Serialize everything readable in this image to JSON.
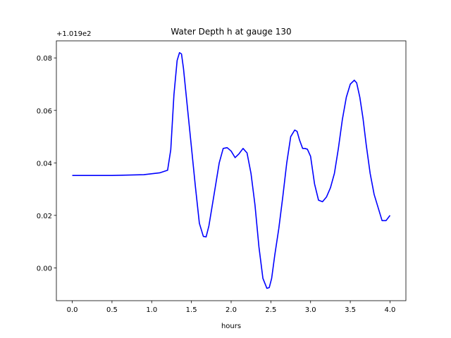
{
  "chart_data": {
    "type": "line",
    "title": "Water Depth h at gauge 130",
    "xlabel": "hours",
    "ylabel": "",
    "y_offset_label": "+1.019e2",
    "xlim": [
      -0.2,
      4.2
    ],
    "ylim": [
      -0.0125,
      0.0865
    ],
    "x_ticks": [
      0.0,
      0.5,
      1.0,
      1.5,
      2.0,
      2.5,
      3.0,
      3.5,
      4.0
    ],
    "x_tick_labels": [
      "0.0",
      "0.5",
      "1.0",
      "1.5",
      "2.0",
      "2.5",
      "3.0",
      "3.5",
      "4.0"
    ],
    "y_ticks": [
      0.0,
      0.02,
      0.04,
      0.06,
      0.08
    ],
    "y_tick_labels": [
      "0.00",
      "0.02",
      "0.04",
      "0.06",
      "0.08"
    ],
    "grid": false,
    "legend": "none",
    "series": [
      {
        "color": "#0000ff",
        "x": [
          0.0,
          0.5,
          0.9,
          1.1,
          1.2,
          1.24,
          1.28,
          1.32,
          1.35,
          1.375,
          1.4,
          1.45,
          1.5,
          1.55,
          1.6,
          1.65,
          1.685,
          1.72,
          1.78,
          1.85,
          1.9,
          1.95,
          2.0,
          2.05,
          2.1,
          2.15,
          2.2,
          2.25,
          2.3,
          2.35,
          2.4,
          2.45,
          2.48,
          2.51,
          2.55,
          2.6,
          2.65,
          2.7,
          2.75,
          2.8,
          2.83,
          2.86,
          2.9,
          2.93,
          2.96,
          3.0,
          3.05,
          3.1,
          3.15,
          3.2,
          3.25,
          3.3,
          3.35,
          3.4,
          3.45,
          3.5,
          3.55,
          3.58,
          3.62,
          3.66,
          3.7,
          3.75,
          3.8,
          3.85,
          3.9,
          3.95,
          4.0
        ],
        "y": [
          0.0352,
          0.0352,
          0.0355,
          0.0362,
          0.0372,
          0.045,
          0.066,
          0.079,
          0.082,
          0.0815,
          0.076,
          0.061,
          0.046,
          0.031,
          0.017,
          0.012,
          0.0118,
          0.016,
          0.027,
          0.04,
          0.0455,
          0.0458,
          0.0445,
          0.042,
          0.0435,
          0.0455,
          0.0438,
          0.036,
          0.024,
          0.008,
          -0.004,
          -0.0078,
          -0.0075,
          -0.004,
          0.005,
          0.015,
          0.027,
          0.04,
          0.05,
          0.0525,
          0.052,
          0.0488,
          0.0455,
          0.0455,
          0.0452,
          0.0425,
          0.032,
          0.0258,
          0.0252,
          0.027,
          0.0305,
          0.036,
          0.0455,
          0.0565,
          0.065,
          0.07,
          0.0715,
          0.0705,
          0.065,
          0.057,
          0.047,
          0.036,
          0.028,
          0.023,
          0.018,
          0.018,
          0.02
        ]
      }
    ]
  }
}
